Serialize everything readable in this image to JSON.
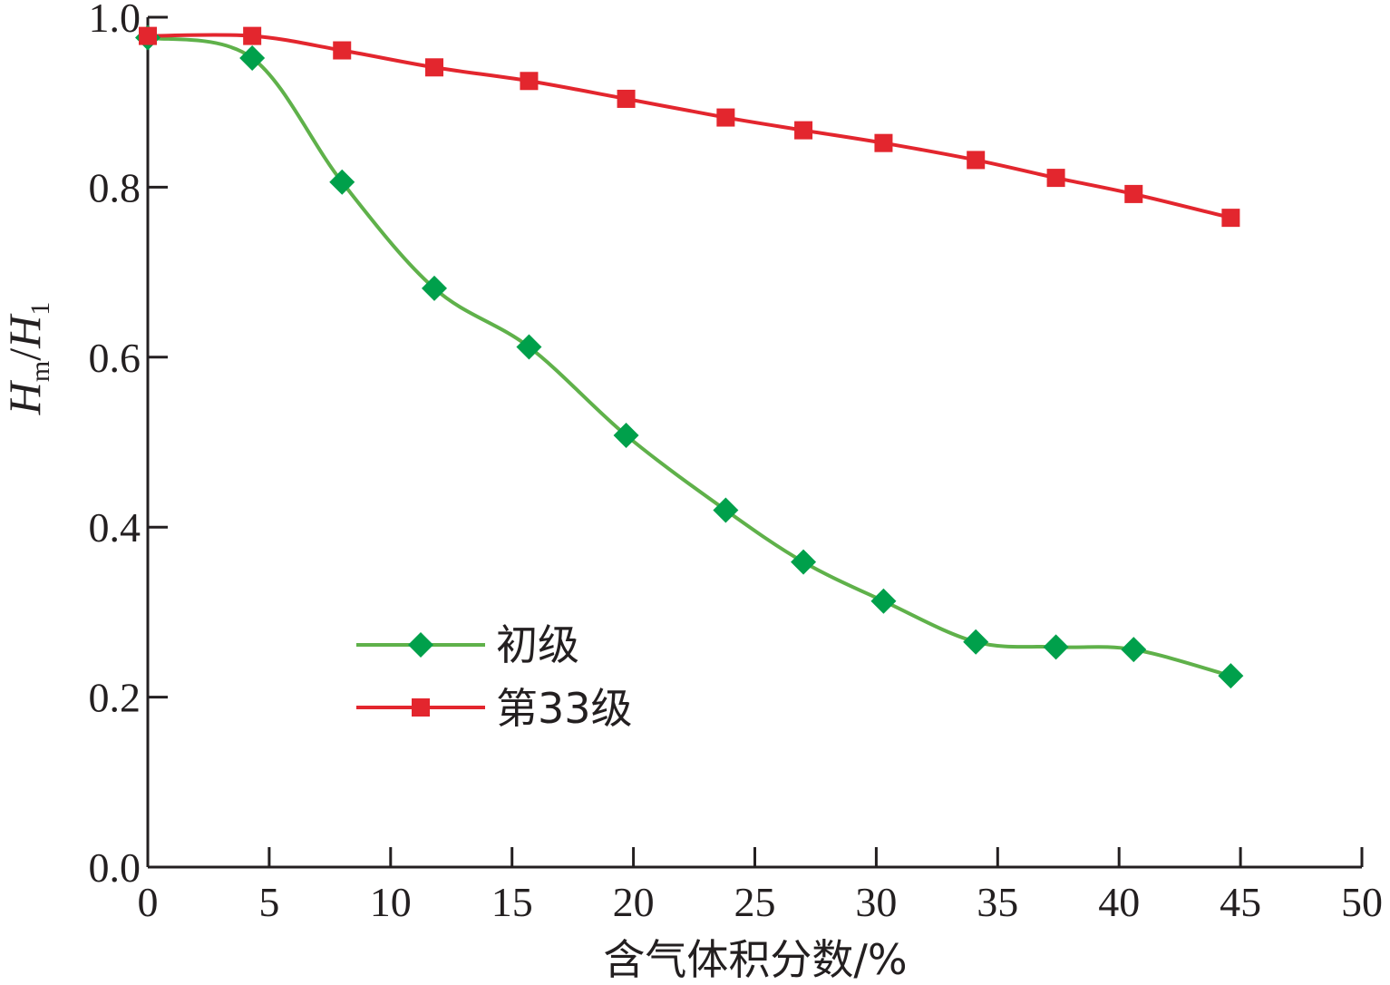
{
  "chart_data": {
    "type": "line",
    "xlabel": "含气体积分数/%",
    "ylabel": {
      "main": "H",
      "sub1": "m",
      "sep": "/",
      "main2": "H",
      "sub2": "1"
    },
    "xlim": [
      0,
      50
    ],
    "ylim": [
      0.0,
      1.0
    ],
    "x_ticks": [
      "0",
      "5",
      "10",
      "15",
      "20",
      "25",
      "30",
      "35",
      "40",
      "45",
      "50"
    ],
    "y_ticks": [
      "0.0",
      "0.2",
      "0.4",
      "0.6",
      "0.8",
      "1.0"
    ],
    "grid": false,
    "legend_position": "lower-left-center",
    "series": [
      {
        "name": "初级",
        "color": "#5fb14a",
        "marker": "diamond",
        "marker_color": "#00a04b",
        "x": [
          0,
          4.3,
          8.0,
          11.8,
          15.7,
          19.7,
          23.8,
          27.0,
          30.3,
          34.1,
          37.4,
          40.6,
          44.6
        ],
        "y": [
          0.976,
          0.952,
          0.806,
          0.681,
          0.612,
          0.508,
          0.42,
          0.359,
          0.313,
          0.265,
          0.259,
          0.256,
          0.225
        ]
      },
      {
        "name": "第33级",
        "color": "#e3262e",
        "marker": "square",
        "marker_color": "#e3262e",
        "x": [
          0,
          4.3,
          8.0,
          11.8,
          15.7,
          19.7,
          23.8,
          27.0,
          30.3,
          34.1,
          37.4,
          40.6,
          44.6
        ],
        "y": [
          0.978,
          0.978,
          0.961,
          0.941,
          0.925,
          0.904,
          0.882,
          0.867,
          0.852,
          0.832,
          0.811,
          0.792,
          0.764
        ]
      }
    ]
  }
}
